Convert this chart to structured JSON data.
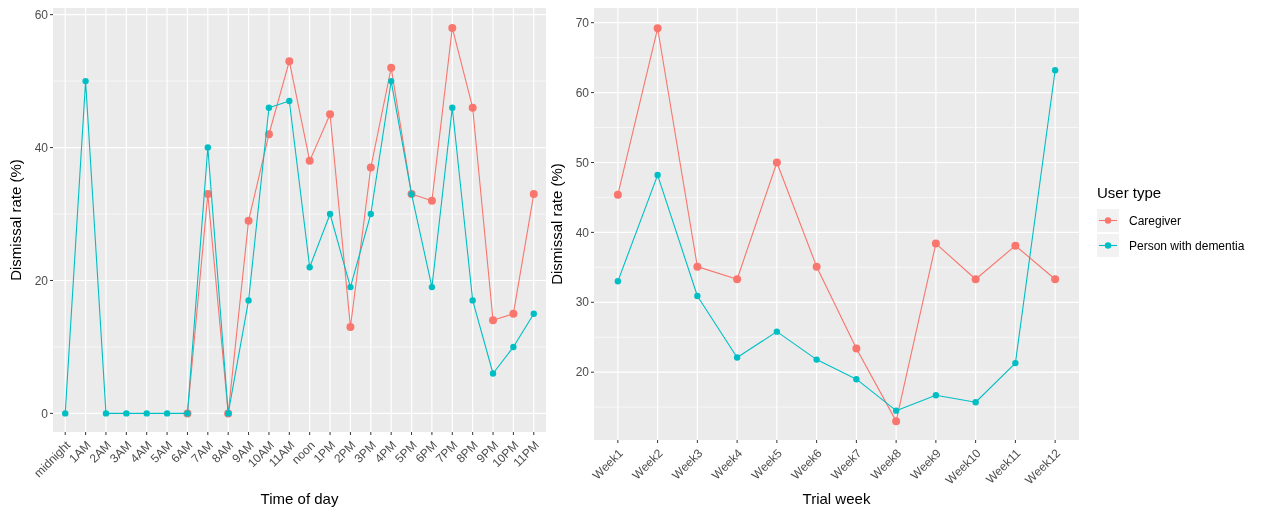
{
  "chart_data": [
    {
      "type": "line",
      "xlabel": "Time of day",
      "ylabel": "Dismissal rate (%)",
      "categories": [
        "midnight",
        "1AM",
        "2AM",
        "3AM",
        "4AM",
        "5AM",
        "6AM",
        "7AM",
        "8AM",
        "9AM",
        "10AM",
        "11AM",
        "noon",
        "1PM",
        "2PM",
        "3PM",
        "4PM",
        "5PM",
        "6PM",
        "7PM",
        "8PM",
        "9PM",
        "10PM",
        "11PM"
      ],
      "ylim": [
        -2.8,
        61
      ],
      "yticks": [
        0,
        20,
        40,
        60
      ],
      "grid": true,
      "marker": "circle",
      "legend": false,
      "series": [
        {
          "color": "#F8766D",
          "values": [
            null,
            null,
            null,
            null,
            null,
            null,
            0,
            33,
            0,
            29,
            42,
            53,
            38,
            45,
            13,
            37,
            52,
            33,
            32,
            58,
            46,
            14,
            15,
            33
          ]
        },
        {
          "color": "#00BFC4",
          "values": [
            0,
            50,
            0,
            0,
            0,
            0,
            0,
            40,
            0,
            17,
            46,
            47,
            22,
            30,
            19,
            30,
            50,
            33,
            19,
            46,
            17,
            6,
            10,
            15
          ]
        }
      ]
    },
    {
      "type": "line",
      "xlabel": "Trial week",
      "ylabel": "Dismissal rate (%)",
      "categories": [
        "Week1",
        "Week2",
        "Week3",
        "Week4",
        "Week5",
        "Week6",
        "Week7",
        "Week8",
        "Week9",
        "Week10",
        "Week11",
        "Week12"
      ],
      "ylim": [
        10.3,
        72.1
      ],
      "yticks": [
        20,
        30,
        40,
        50,
        60,
        70
      ],
      "grid": true,
      "marker": "circle",
      "legend": "right",
      "legend_title": "User type",
      "series": [
        {
          "name": "Caregiver",
          "color": "#F8766D",
          "values": [
            45.4,
            69.2,
            35.1,
            33.3,
            50,
            35.1,
            23.4,
            13,
            38.4,
            33.3,
            38.1,
            33.3
          ]
        },
        {
          "name": "Person with dementia",
          "color": "#00BFC4",
          "values": [
            33,
            48.2,
            30.9,
            22.1,
            25.8,
            21.8,
            19,
            14.5,
            16.7,
            15.7,
            21.3,
            63.2
          ]
        }
      ]
    }
  ]
}
